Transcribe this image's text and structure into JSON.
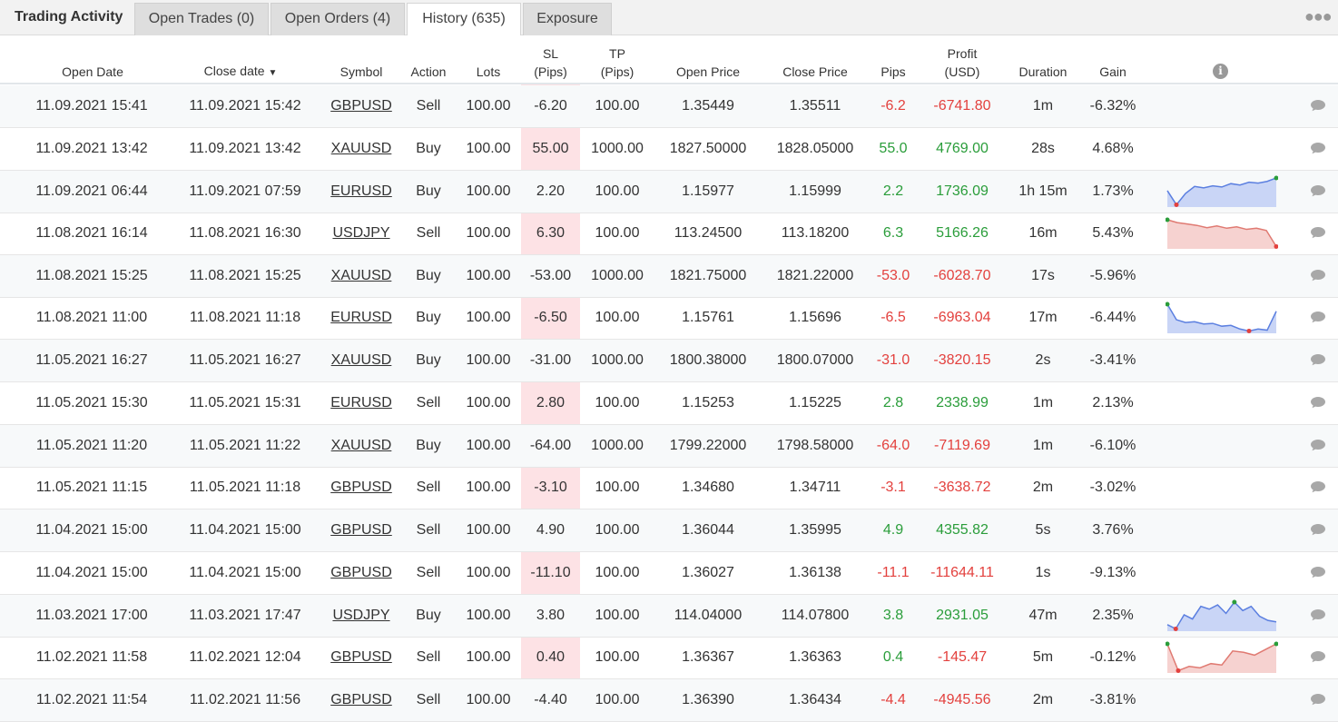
{
  "tabs": {
    "title": "Trading Activity",
    "items": [
      {
        "label": "Open Trades (0)",
        "active": false
      },
      {
        "label": "Open Orders (4)",
        "active": false
      },
      {
        "label": "History (635)",
        "active": true
      },
      {
        "label": "Exposure",
        "active": false
      }
    ],
    "more_icon": "more-dots-icon"
  },
  "columns": {
    "open_date": "Open Date",
    "close_date": "Close date",
    "close_date_sort": "▼",
    "symbol": "Symbol",
    "action": "Action",
    "lots": "Lots",
    "sl_top": "SL",
    "sl_bottom": "(Pips)",
    "tp_top": "TP",
    "tp_bottom": "(Pips)",
    "open_price": "Open Price",
    "close_price": "Close Price",
    "pips": "Pips",
    "profit_top": "Profit",
    "profit_bottom": "(USD)",
    "duration": "Duration",
    "gain": "Gain",
    "info_icon": "i"
  },
  "colors": {
    "positive": "#2a9d3a",
    "negative": "#e3413e",
    "sl_band": "#fde2e5",
    "spark_up_fill": "#c9d5f6",
    "spark_up_line": "#5b7fe0",
    "spark_down_fill": "#f6d2d0",
    "spark_down_line": "#e07a72"
  },
  "rows": [
    {
      "open": "11.09.2021 15:41",
      "close": "11.09.2021 15:42",
      "symbol": "GBPUSD",
      "action": "Sell",
      "lots": "100.00",
      "sl": "-6.20",
      "tp": "100.00",
      "open_price": "1.35449",
      "close_price": "1.35511",
      "pips": "-6.2",
      "profit": "-6741.80",
      "duration": "1m",
      "gain": "-6.32%",
      "sign": "neg",
      "spark": null
    },
    {
      "open": "11.09.2021 13:42",
      "close": "11.09.2021 13:42",
      "symbol": "XAUUSD",
      "action": "Buy",
      "lots": "100.00",
      "sl": "55.00",
      "tp": "1000.00",
      "open_price": "1827.50000",
      "close_price": "1828.05000",
      "pips": "55.0",
      "profit": "4769.00",
      "duration": "28s",
      "gain": "4.68%",
      "sign": "pos",
      "spark": null
    },
    {
      "open": "11.09.2021 06:44",
      "close": "11.09.2021 07:59",
      "symbol": "EURUSD",
      "action": "Buy",
      "lots": "100.00",
      "sl": "2.20",
      "tp": "100.00",
      "open_price": "1.15977",
      "close_price": "1.15999",
      "pips": "2.2",
      "profit": "1736.09",
      "duration": "1h 15m",
      "gain": "1.73%",
      "sign": "pos",
      "spark": {
        "trend": "up",
        "values": [
          0.55,
          0.05,
          0.45,
          0.7,
          0.65,
          0.72,
          0.68,
          0.8,
          0.75,
          0.85,
          0.82,
          0.88,
          1.0
        ]
      }
    },
    {
      "open": "11.08.2021 16:14",
      "close": "11.08.2021 16:30",
      "symbol": "USDJPY",
      "action": "Sell",
      "lots": "100.00",
      "sl": "6.30",
      "tp": "100.00",
      "open_price": "113.24500",
      "close_price": "113.18200",
      "pips": "6.3",
      "profit": "5166.26",
      "duration": "16m",
      "gain": "5.43%",
      "sign": "pos",
      "spark": {
        "trend": "down",
        "values": [
          1.0,
          0.9,
          0.85,
          0.8,
          0.72,
          0.78,
          0.7,
          0.75,
          0.66,
          0.7,
          0.62,
          0.05
        ]
      }
    },
    {
      "open": "11.08.2021 15:25",
      "close": "11.08.2021 15:25",
      "symbol": "XAUUSD",
      "action": "Buy",
      "lots": "100.00",
      "sl": "-53.00",
      "tp": "1000.00",
      "open_price": "1821.75000",
      "close_price": "1821.22000",
      "pips": "-53.0",
      "profit": "-6028.70",
      "duration": "17s",
      "gain": "-5.96%",
      "sign": "neg",
      "spark": null
    },
    {
      "open": "11.08.2021 11:00",
      "close": "11.08.2021 11:18",
      "symbol": "EURUSD",
      "action": "Buy",
      "lots": "100.00",
      "sl": "-6.50",
      "tp": "100.00",
      "open_price": "1.15761",
      "close_price": "1.15696",
      "pips": "-6.5",
      "profit": "-6963.04",
      "duration": "17m",
      "gain": "-6.44%",
      "sign": "neg",
      "spark": {
        "trend": "up",
        "values": [
          1.0,
          0.45,
          0.35,
          0.38,
          0.3,
          0.32,
          0.22,
          0.25,
          0.12,
          0.05,
          0.12,
          0.08,
          0.75
        ]
      }
    },
    {
      "open": "11.05.2021 16:27",
      "close": "11.05.2021 16:27",
      "symbol": "XAUUSD",
      "action": "Buy",
      "lots": "100.00",
      "sl": "-31.00",
      "tp": "1000.00",
      "open_price": "1800.38000",
      "close_price": "1800.07000",
      "pips": "-31.0",
      "profit": "-3820.15",
      "duration": "2s",
      "gain": "-3.41%",
      "sign": "neg",
      "spark": null
    },
    {
      "open": "11.05.2021 15:30",
      "close": "11.05.2021 15:31",
      "symbol": "EURUSD",
      "action": "Sell",
      "lots": "100.00",
      "sl": "2.80",
      "tp": "100.00",
      "open_price": "1.15253",
      "close_price": "1.15225",
      "pips": "2.8",
      "profit": "2338.99",
      "duration": "1m",
      "gain": "2.13%",
      "sign": "pos",
      "spark": null
    },
    {
      "open": "11.05.2021 11:20",
      "close": "11.05.2021 11:22",
      "symbol": "XAUUSD",
      "action": "Buy",
      "lots": "100.00",
      "sl": "-64.00",
      "tp": "1000.00",
      "open_price": "1799.22000",
      "close_price": "1798.58000",
      "pips": "-64.0",
      "profit": "-7119.69",
      "duration": "1m",
      "gain": "-6.10%",
      "sign": "neg",
      "spark": null
    },
    {
      "open": "11.05.2021 11:15",
      "close": "11.05.2021 11:18",
      "symbol": "GBPUSD",
      "action": "Sell",
      "lots": "100.00",
      "sl": "-3.10",
      "tp": "100.00",
      "open_price": "1.34680",
      "close_price": "1.34711",
      "pips": "-3.1",
      "profit": "-3638.72",
      "duration": "2m",
      "gain": "-3.02%",
      "sign": "neg",
      "spark": null
    },
    {
      "open": "11.04.2021 15:00",
      "close": "11.04.2021 15:00",
      "symbol": "GBPUSD",
      "action": "Sell",
      "lots": "100.00",
      "sl": "4.90",
      "tp": "100.00",
      "open_price": "1.36044",
      "close_price": "1.35995",
      "pips": "4.9",
      "profit": "4355.82",
      "duration": "5s",
      "gain": "3.76%",
      "sign": "pos",
      "spark": null
    },
    {
      "open": "11.04.2021 15:00",
      "close": "11.04.2021 15:00",
      "symbol": "GBPUSD",
      "action": "Sell",
      "lots": "100.00",
      "sl": "-11.10",
      "tp": "100.00",
      "open_price": "1.36027",
      "close_price": "1.36138",
      "pips": "-11.1",
      "profit": "-11644.11",
      "duration": "1s",
      "gain": "-9.13%",
      "sign": "neg",
      "spark": null
    },
    {
      "open": "11.03.2021 17:00",
      "close": "11.03.2021 17:47",
      "symbol": "USDJPY",
      "action": "Buy",
      "lots": "100.00",
      "sl": "3.80",
      "tp": "100.00",
      "open_price": "114.04000",
      "close_price": "114.07800",
      "pips": "3.8",
      "profit": "2931.05",
      "duration": "47m",
      "gain": "2.35%",
      "sign": "pos",
      "spark": {
        "trend": "up",
        "values": [
          0.2,
          0.05,
          0.55,
          0.4,
          0.85,
          0.75,
          0.9,
          0.6,
          1.0,
          0.7,
          0.85,
          0.5,
          0.35,
          0.3
        ]
      }
    },
    {
      "open": "11.02.2021 11:58",
      "close": "11.02.2021 12:04",
      "symbol": "GBPUSD",
      "action": "Sell",
      "lots": "100.00",
      "sl": "0.40",
      "tp": "100.00",
      "open_price": "1.36367",
      "close_price": "1.36363",
      "pips": "0.4",
      "profit": "-145.47",
      "duration": "5m",
      "gain": "-0.12%",
      "sign_pips": "pos",
      "sign": "neg",
      "spark": {
        "trend": "down",
        "values": [
          1.0,
          0.05,
          0.2,
          0.15,
          0.3,
          0.25,
          0.75,
          0.7,
          0.6,
          0.8,
          1.0
        ]
      }
    },
    {
      "open": "11.02.2021 11:54",
      "close": "11.02.2021 11:56",
      "symbol": "GBPUSD",
      "action": "Sell",
      "lots": "100.00",
      "sl": "-4.40",
      "tp": "100.00",
      "open_price": "1.36390",
      "close_price": "1.36434",
      "pips": "-4.4",
      "profit": "-4945.56",
      "duration": "2m",
      "gain": "-3.81%",
      "sign": "neg",
      "spark": null
    }
  ]
}
